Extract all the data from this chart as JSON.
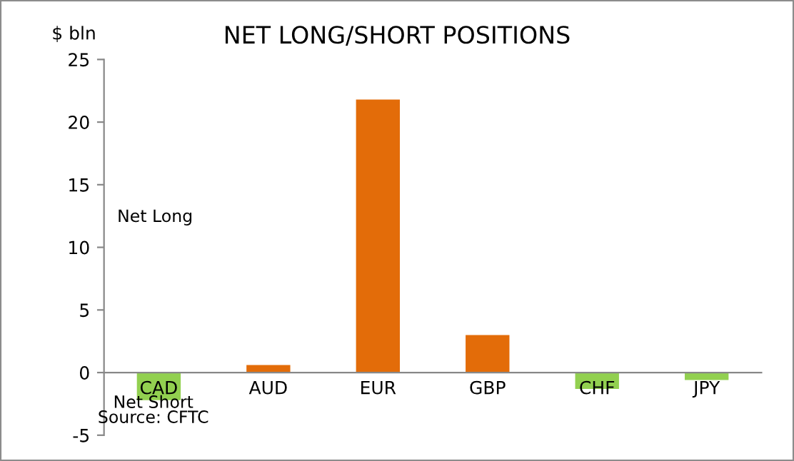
{
  "chart_data": {
    "type": "bar",
    "title": "NET LONG/SHORT POSITIONS",
    "ylabel": "$ bln",
    "categories": [
      "CAD",
      "AUD",
      "EUR",
      "GBP",
      "CHF",
      "JPY"
    ],
    "values": [
      -2.2,
      0.6,
      21.8,
      3.0,
      -1.3,
      -0.6
    ],
    "colors": [
      "#92d050",
      "#e36c09",
      "#e36c09",
      "#e36c09",
      "#92d050",
      "#92d050"
    ],
    "ylim": [
      -5,
      25
    ],
    "yticks": [
      -5,
      0,
      5,
      10,
      15,
      20,
      25
    ],
    "grid": false,
    "legend": false,
    "annotations": [
      "Net Long",
      "Net Short",
      "Source: CFTC"
    ]
  }
}
